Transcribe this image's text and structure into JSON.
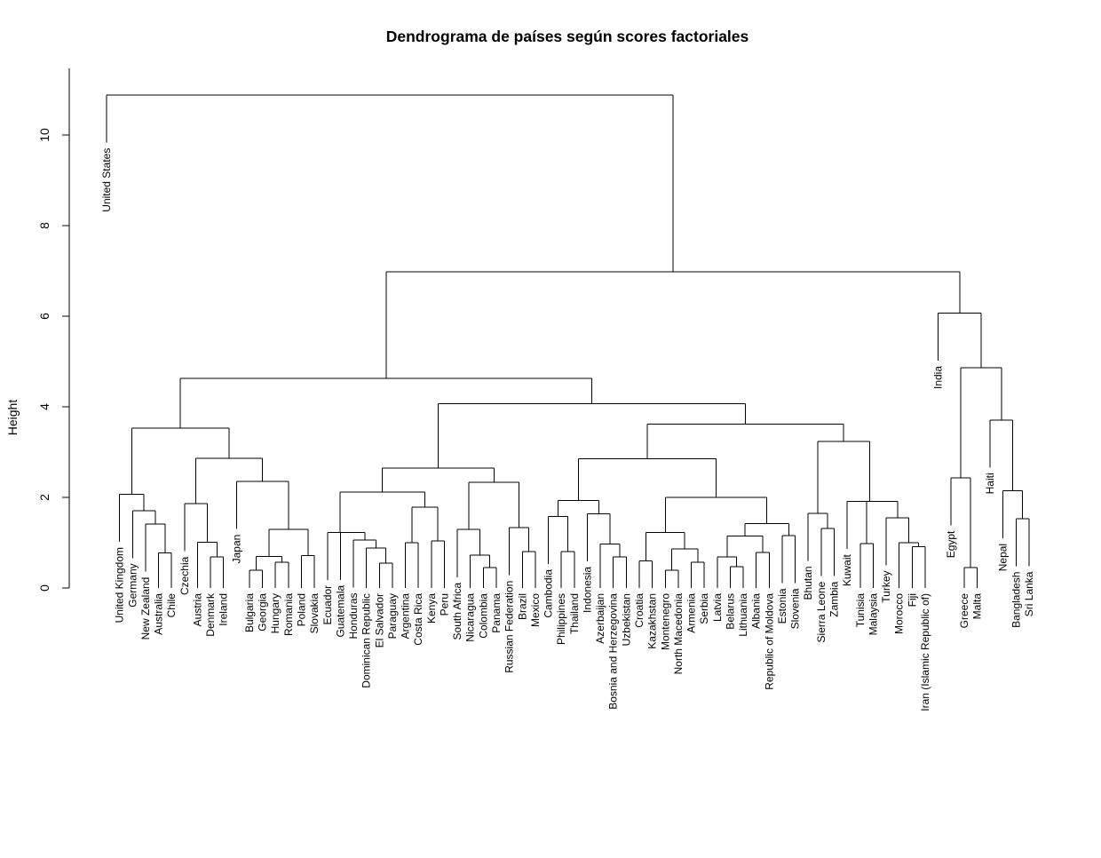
{
  "chart_data": {
    "type": "dendrogram",
    "title": "Dendrograma de países según scores factoriales",
    "ylabel": "Height",
    "xlabel": "",
    "ylim": [
      0,
      11
    ],
    "yticks": [
      0,
      2,
      4,
      6,
      8,
      10
    ],
    "labels": [
      "United States",
      "United Kingdom",
      "Germany",
      "New Zealand",
      "Australia",
      "Chile",
      "Czechia",
      "Austria",
      "Denmark",
      "Ireland",
      "Japan",
      "Bulgaria",
      "Georgia",
      "Hungary",
      "Romania",
      "Poland",
      "Slovakia",
      "Ecuador",
      "Guatemala",
      "Honduras",
      "Dominican Republic",
      "El Salvador",
      "Paraguay",
      "Argentina",
      "Costa Rica",
      "Kenya",
      "Peru",
      "South Africa",
      "Nicaragua",
      "Colombia",
      "Panama",
      "Russian Federation",
      "Brazil",
      "Mexico",
      "Cambodia",
      "Philippines",
      "Thailand",
      "Indonesia",
      "Azerbaijan",
      "Bosnia and Herzegovina",
      "Uzbekistan",
      "Croatia",
      "Kazakhstan",
      "Montenegro",
      "North Macedonia",
      "Armenia",
      "Serbia",
      "Latvia",
      "Belarus",
      "Lithuania",
      "Albania",
      "Republic of Moldova",
      "Estonia",
      "Slovenia",
      "Bhutan",
      "Sierra Leone",
      "Zambia",
      "Kuwait",
      "Tunisia",
      "Malaysia",
      "Turkey",
      "Morocco",
      "Fiji",
      "Iran (Islamic Republic of)",
      "India",
      "Egypt",
      "Greece",
      "Malta",
      "Haiti",
      "Nepal",
      "Bangladesh",
      "Sri Lanka"
    ],
    "merges": [
      {
        "children": [
          8,
          9
        ],
        "height": 0.69
      },
      {
        "children": [
          7,
          "m0"
        ],
        "height": 1.01
      },
      {
        "children": [
          6,
          "m1"
        ],
        "height": 1.86
      },
      {
        "children": [
          4,
          5
        ],
        "height": 0.77
      },
      {
        "children": [
          3,
          "m3"
        ],
        "height": 1.41
      },
      {
        "children": [
          2,
          "m4"
        ],
        "height": 1.71
      },
      {
        "children": [
          1,
          "m5"
        ],
        "height": 2.07
      },
      {
        "children": [
          11,
          12
        ],
        "height": 0.39
      },
      {
        "children": [
          13,
          14
        ],
        "height": 0.57
      },
      {
        "children": [
          "m7",
          "m8"
        ],
        "height": 0.7
      },
      {
        "children": [
          15,
          16
        ],
        "height": 0.72
      },
      {
        "children": [
          "m9",
          "m10"
        ],
        "height": 1.29
      },
      {
        "children": [
          10,
          "m11"
        ],
        "height": 2.35
      },
      {
        "children": [
          "m2",
          "m12"
        ],
        "height": 2.86
      },
      {
        "children": [
          "m6",
          "m13"
        ],
        "height": 3.53
      },
      {
        "children": [
          21,
          22
        ],
        "height": 0.55
      },
      {
        "children": [
          20,
          "m15"
        ],
        "height": 0.88
      },
      {
        "children": [
          19,
          "m16"
        ],
        "height": 1.06
      },
      {
        "children": [
          18,
          "m17"
        ],
        "height": 1.23
      },
      {
        "children": [
          17,
          "m18"
        ],
        "height": 1.23
      },
      {
        "children": [
          23,
          24
        ],
        "height": 1.0
      },
      {
        "children": [
          25,
          26
        ],
        "height": 1.04
      },
      {
        "children": [
          "m20",
          "m21"
        ],
        "height": 1.78
      },
      {
        "children": [
          "m19",
          "m22"
        ],
        "height": 2.12
      },
      {
        "children": [
          29,
          30
        ],
        "height": 0.45
      },
      {
        "children": [
          28,
          "m24"
        ],
        "height": 0.73
      },
      {
        "children": [
          27,
          "m25"
        ],
        "height": 1.29
      },
      {
        "children": [
          32,
          33
        ],
        "height": 0.8
      },
      {
        "children": [
          31,
          "m27"
        ],
        "height": 1.33
      },
      {
        "children": [
          "m26",
          "m28"
        ],
        "height": 2.33
      },
      {
        "children": [
          "m23",
          "m29"
        ],
        "height": 2.65
      },
      {
        "children": [
          35,
          36
        ],
        "height": 0.8
      },
      {
        "children": [
          34,
          "m31"
        ],
        "height": 1.58
      },
      {
        "children": [
          39,
          40
        ],
        "height": 0.69
      },
      {
        "children": [
          38,
          "m33"
        ],
        "height": 0.97
      },
      {
        "children": [
          37,
          "m34"
        ],
        "height": 1.64
      },
      {
        "children": [
          "m32",
          "m35"
        ],
        "height": 1.93
      },
      {
        "children": [
          41,
          42
        ],
        "height": 0.6
      },
      {
        "children": [
          43,
          44
        ],
        "height": 0.39
      },
      {
        "children": [
          45,
          46
        ],
        "height": 0.57
      },
      {
        "children": [
          "m38",
          "m39"
        ],
        "height": 0.86
      },
      {
        "children": [
          "m37",
          "m40"
        ],
        "height": 1.23
      },
      {
        "children": [
          48,
          49
        ],
        "height": 0.47
      },
      {
        "children": [
          47,
          "m42"
        ],
        "height": 0.69
      },
      {
        "children": [
          50,
          51
        ],
        "height": 0.78
      },
      {
        "children": [
          "m43",
          "m44"
        ],
        "height": 1.15
      },
      {
        "children": [
          52,
          53
        ],
        "height": 1.16
      },
      {
        "children": [
          "m45",
          "m46"
        ],
        "height": 1.42
      },
      {
        "children": [
          "m41",
          "m47"
        ],
        "height": 2.0
      },
      {
        "children": [
          "m36",
          "m48"
        ],
        "height": 2.85
      },
      {
        "children": [
          55,
          56
        ],
        "height": 1.31
      },
      {
        "children": [
          54,
          "m50"
        ],
        "height": 1.65
      },
      {
        "children": [
          58,
          59
        ],
        "height": 0.98
      },
      {
        "children": [
          62,
          63
        ],
        "height": 0.91
      },
      {
        "children": [
          61,
          "m53"
        ],
        "height": 1.0
      },
      {
        "children": [
          60,
          "m54"
        ],
        "height": 1.55
      },
      {
        "children": [
          57,
          "m55"
        ],
        "height": 1.91
      },
      {
        "children": [
          "m52",
          "m56"
        ],
        "height": 1.91
      },
      {
        "children": [
          "m51",
          "m57"
        ],
        "height": 3.24
      },
      {
        "children": [
          "m49",
          "m58"
        ],
        "height": 3.62
      },
      {
        "children": [
          "m30",
          "m59"
        ],
        "height": 4.07
      },
      {
        "children": [
          "m14",
          "m60"
        ],
        "height": 4.63
      },
      {
        "children": [
          66,
          67
        ],
        "height": 0.45
      },
      {
        "children": [
          65,
          "m62"
        ],
        "height": 2.43
      },
      {
        "children": [
          70,
          71
        ],
        "height": 1.53
      },
      {
        "children": [
          69,
          "m64"
        ],
        "height": 2.15
      },
      {
        "children": [
          68,
          "m65"
        ],
        "height": 3.71
      },
      {
        "children": [
          "m63",
          "m66"
        ],
        "height": 4.86
      },
      {
        "children": [
          64,
          "m67"
        ],
        "height": 6.07
      },
      {
        "children": [
          "m61",
          "m68"
        ],
        "height": 6.98
      },
      {
        "children": [
          0,
          "m69"
        ],
        "height": 10.88
      }
    ]
  }
}
